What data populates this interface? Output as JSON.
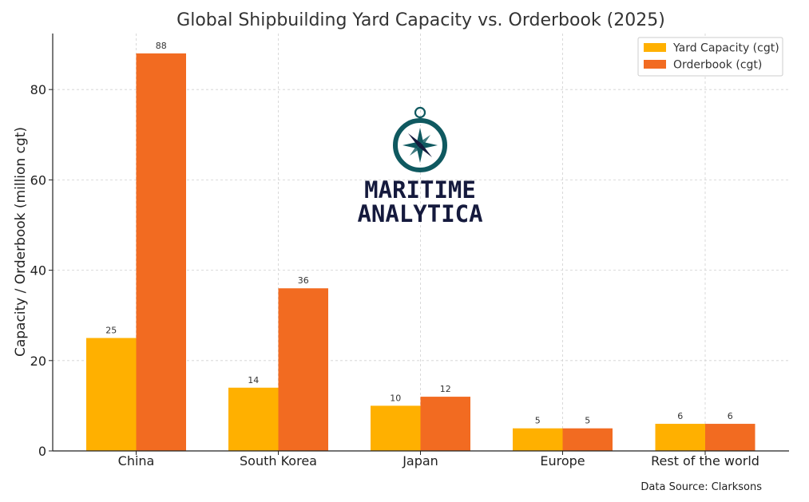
{
  "chart_data": {
    "type": "bar",
    "title": "Global Shipbuilding Yard Capacity vs. Orderbook (2025)",
    "xlabel": "",
    "ylabel": "Capacity / Orderbook (million cgt)",
    "categories": [
      "China",
      "South Korea",
      "Japan",
      "Europe",
      "Rest of the world"
    ],
    "series": [
      {
        "name": "Yard Capacity (cgt)",
        "values": [
          25,
          14,
          10,
          5,
          6
        ],
        "color": "#FFB000"
      },
      {
        "name": "Orderbook (cgt)",
        "values": [
          88,
          36,
          12,
          5,
          6
        ],
        "color": "#F26B21"
      }
    ],
    "ylim": [
      0,
      92.4
    ],
    "yticks": [
      0,
      20,
      40,
      60,
      80
    ],
    "grid": true,
    "legend_position": "top-right"
  },
  "logo": {
    "line1": "MARITIME",
    "line2": "ANALYTICA",
    "icon": "compass-icon",
    "ring_color": "#0f5960",
    "text_color": "#151a3d"
  },
  "source_note": "Data Source: Clarksons"
}
